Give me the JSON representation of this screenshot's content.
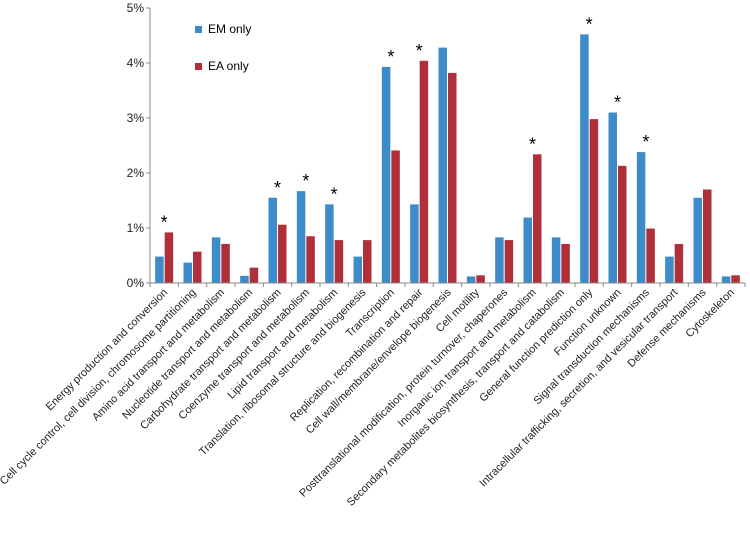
{
  "chart_data": {
    "type": "bar",
    "title": "",
    "xlabel": "",
    "ylabel": "",
    "ylim": [
      0,
      5
    ],
    "y_ticks": [
      "0%",
      "1%",
      "2%",
      "3%",
      "4%",
      "5%"
    ],
    "legend_position": "top-left",
    "categories": [
      "Energy production and conversion",
      "Cell cycle control, cell division, chromosome partitioning",
      "Amino acid transport and metabolism",
      "Nucleotide transport and metabolism",
      "Carbohydrate transport and metabolism",
      "Coenzyme transport and metabolism",
      "Lipid transport and metabolism",
      "Translation, ribosomal structure and biogenesis",
      "Transcription",
      "Replication, recombination and repair",
      "Cell wall/membrane/envelope biogenesis",
      "Cell motility",
      "Posttranslational modification, protein turnover, chaperones",
      "Inorganic ion transport and metabolism",
      "Secondary metabolites biosynthesis, transport and catabolism",
      "General function prediction only",
      "Function unknown",
      "Signal transduction mechanisms",
      "Intracellular trafficking, secretion, and vesicular transport",
      "Defense mechanisms",
      "Cytoskeleton"
    ],
    "series": [
      {
        "name": "EM only",
        "color": "#3D8BC8",
        "values": [
          0.48,
          0.37,
          0.83,
          0.13,
          1.55,
          1.67,
          1.43,
          0.48,
          3.93,
          1.43,
          4.28,
          0.12,
          0.83,
          1.19,
          0.83,
          4.52,
          3.1,
          2.38,
          0.48,
          1.55,
          0.12
        ]
      },
      {
        "name": "EA only",
        "color": "#B0303A",
        "values": [
          0.92,
          0.57,
          0.71,
          0.28,
          1.06,
          0.85,
          0.78,
          0.78,
          2.41,
          4.04,
          3.82,
          0.14,
          0.78,
          2.34,
          0.71,
          2.98,
          2.13,
          0.99,
          0.71,
          1.7,
          0.14
        ]
      }
    ],
    "significance_marker": "*",
    "significant_categories": [
      0,
      4,
      5,
      6,
      8,
      9,
      13,
      15,
      16,
      17
    ]
  }
}
